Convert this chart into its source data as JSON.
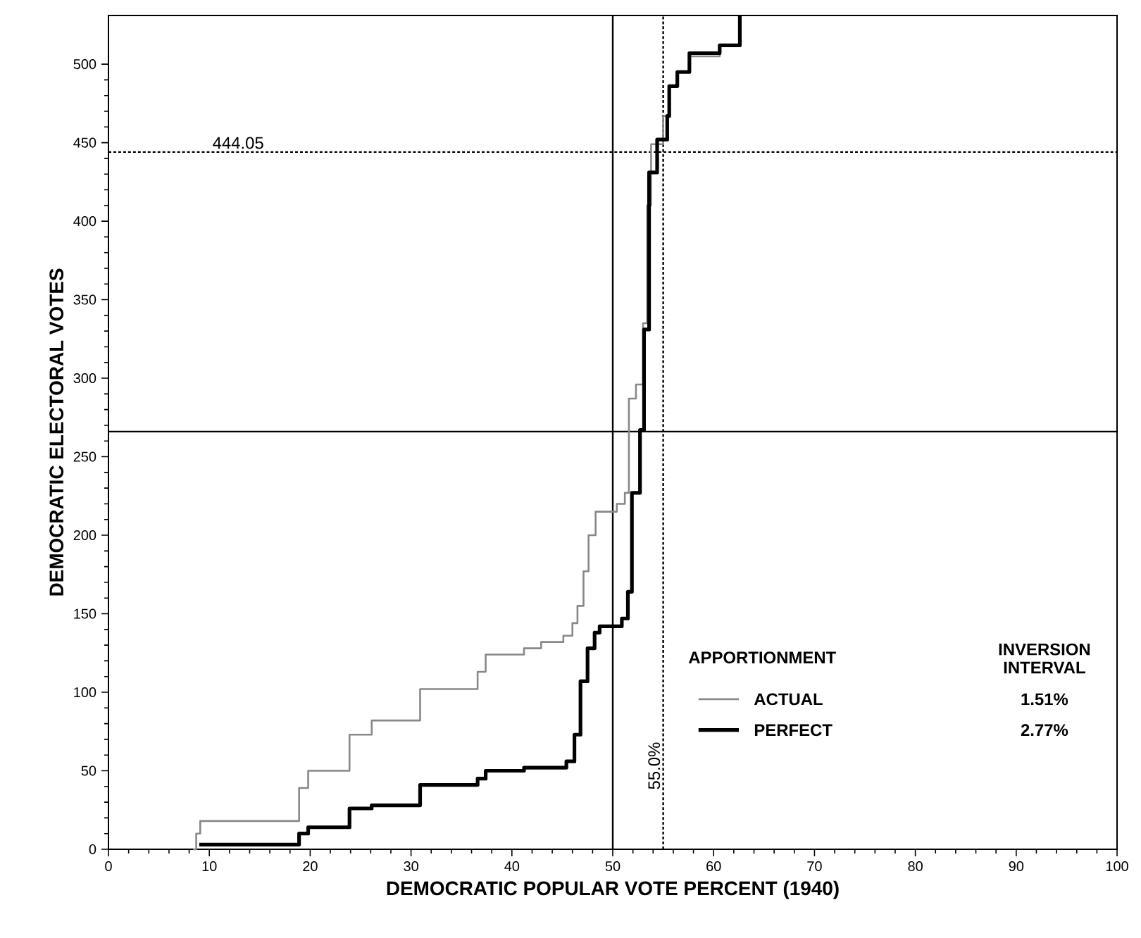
{
  "chart_data": {
    "type": "step",
    "xlabel": "DEMOCRATIC POPULAR VOTE PERCENT (1940)",
    "ylabel": "DEMOCRATIC ELECTORAL VOTES",
    "legend_title": "APPORTIONMENT",
    "legend": "bottom right",
    "xlim": [
      0,
      100
    ],
    "ylim": [
      0,
      531
    ],
    "xticks": [
      0,
      10,
      20,
      30,
      40,
      50,
      60,
      70,
      80,
      90,
      100
    ],
    "yticks": [
      0,
      50,
      100,
      150,
      200,
      250,
      300,
      350,
      400,
      450,
      500
    ],
    "series": [
      {
        "name": "ACTUAL",
        "color": "#888888",
        "x": [
          8.4,
          8.7,
          9.1,
          18.9,
          19.8,
          23.9,
          26.1,
          30.9,
          36.6,
          37.4,
          41.2,
          42.9,
          45.1,
          46.0,
          46.5,
          47.1,
          47.6,
          48.3,
          50.4,
          51.2,
          51.6,
          52.3,
          53.0,
          53.4,
          53.8,
          55.0,
          55.6,
          56.4,
          57.6,
          60.6
        ],
        "values": [
          0,
          10,
          18,
          39,
          50,
          73,
          82,
          102,
          113,
          124,
          128,
          132,
          136,
          144,
          155,
          177,
          200,
          215,
          220,
          227,
          287,
          296,
          335,
          410,
          449,
          467,
          486,
          495,
          505,
          512
        ]
      },
      {
        "name": "PERFECT",
        "color": "#000000",
        "x": [
          9.0,
          18.9,
          19.8,
          23.9,
          26.1,
          30.9,
          36.6,
          37.4,
          41.2,
          45.4,
          46.2,
          46.8,
          47.5,
          48.2,
          48.7,
          50.9,
          51.5,
          51.9,
          52.7,
          53.1,
          53.6,
          54.4,
          55.4,
          55.6,
          56.4,
          57.6,
          60.6,
          62.6
        ],
        "values": [
          3,
          10,
          14,
          26,
          28,
          41,
          45,
          50,
          52,
          56,
          73,
          107,
          128,
          138,
          142,
          147,
          164,
          227,
          267,
          331,
          431,
          452,
          467,
          486,
          495,
          507,
          512,
          531
        ]
      }
    ],
    "ref_lines": [
      {
        "axis": "y",
        "value": 444.05,
        "label": "444.05",
        "line_style": "dotted"
      },
      {
        "axis": "y",
        "value": 266,
        "line_style": "solid"
      },
      {
        "axis": "x",
        "value": 50,
        "line_style": "solid"
      },
      {
        "axis": "x",
        "value": 55,
        "label": "55.0%",
        "line_style": "dotted"
      }
    ],
    "annotations": [
      "INVERSION INTERVAL",
      "1.51%",
      "2.77%"
    ]
  }
}
